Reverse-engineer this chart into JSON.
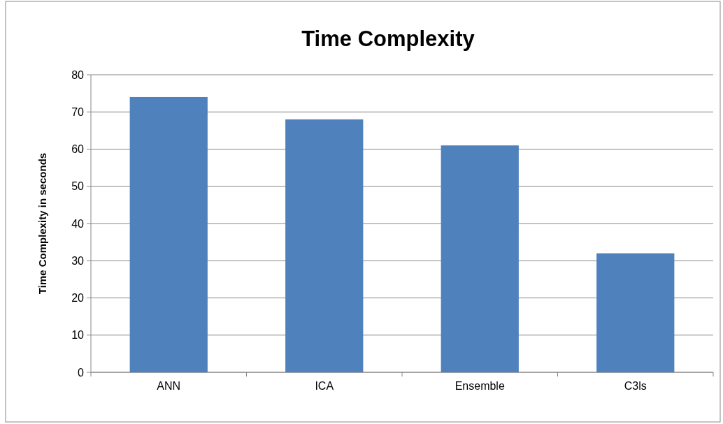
{
  "chart_data": {
    "type": "bar",
    "title": "Time Complexity",
    "ylabel": "Time Complexity in seconds",
    "categories": [
      "ANN",
      "ICA",
      "Ensemble",
      "C3ls"
    ],
    "values": [
      74,
      68,
      61,
      32
    ],
    "color": "#4f81bd",
    "ylim": [
      0,
      80
    ],
    "yticks": [
      0,
      10,
      20,
      30,
      40,
      50,
      60,
      70,
      80
    ],
    "grid": "y"
  }
}
